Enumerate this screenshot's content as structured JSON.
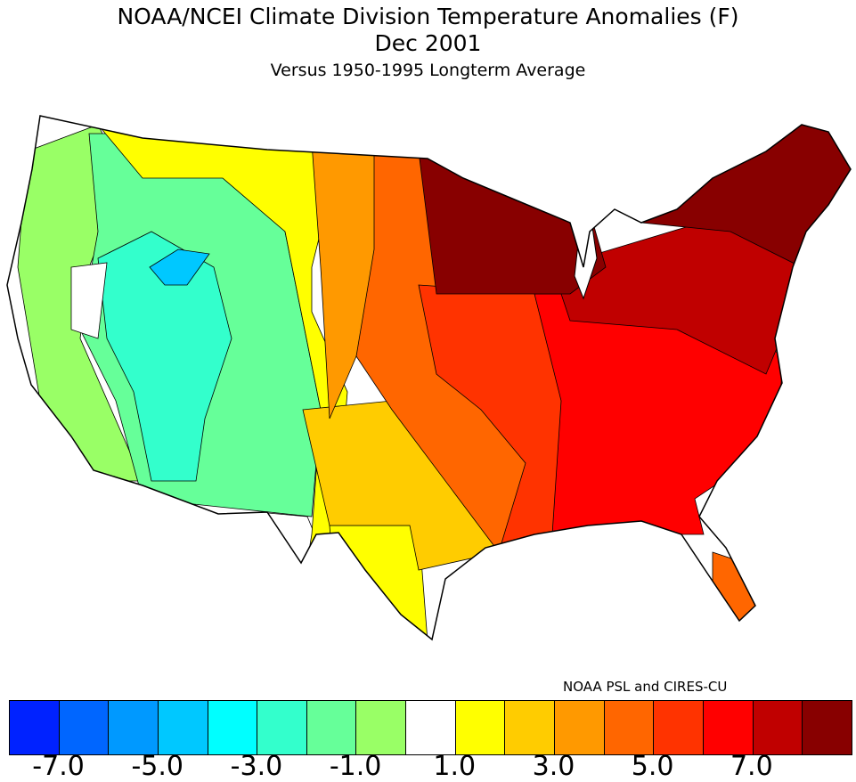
{
  "title": {
    "line1": "NOAA/NCEI Climate Division Temperature Anomalies (F)",
    "line2": "Dec 2001",
    "line3": "Versus 1950-1995 Longterm Average"
  },
  "credit": "NOAA PSL and CIRES-CU",
  "legend": {
    "colors": [
      "#0022ff",
      "#0066ff",
      "#0099ff",
      "#00c8ff",
      "#00ffff",
      "#33ffcc",
      "#66ff99",
      "#99ff66",
      "#ffffff",
      "#ffff00",
      "#ffcc00",
      "#ff9900",
      "#ff6600",
      "#ff3300",
      "#ff0000",
      "#c00000",
      "#880000"
    ],
    "tick_labels": [
      "-7.0",
      "-5.0",
      "-3.0",
      "-1.0",
      "1.0",
      "3.0",
      "5.0",
      "7.0"
    ]
  },
  "regions": [
    {
      "name": "pacific-coast",
      "bin": 8
    },
    {
      "name": "great-basin",
      "bin": 7
    },
    {
      "name": "intermountain",
      "bin": 6
    },
    {
      "name": "central-utah",
      "bin": 5
    },
    {
      "name": "idaho-patch",
      "bin": 3
    },
    {
      "name": "nevada-white",
      "bin": 8
    },
    {
      "name": "southwest-white",
      "bin": 8
    },
    {
      "name": "northern-rockies",
      "bin": 9
    },
    {
      "name": "west-texas",
      "bin": 9
    },
    {
      "name": "southern-plains",
      "bin": 10
    },
    {
      "name": "northern-plains",
      "bin": 11
    },
    {
      "name": "central-plains",
      "bin": 12
    },
    {
      "name": "midwest-south",
      "bin": 13
    },
    {
      "name": "east-central",
      "bin": 14
    },
    {
      "name": "ohio-valley-northeast",
      "bin": 15
    },
    {
      "name": "upper-midwest-new-england",
      "bin": 16
    },
    {
      "name": "florida-peninsula",
      "bin": 12
    }
  ]
}
